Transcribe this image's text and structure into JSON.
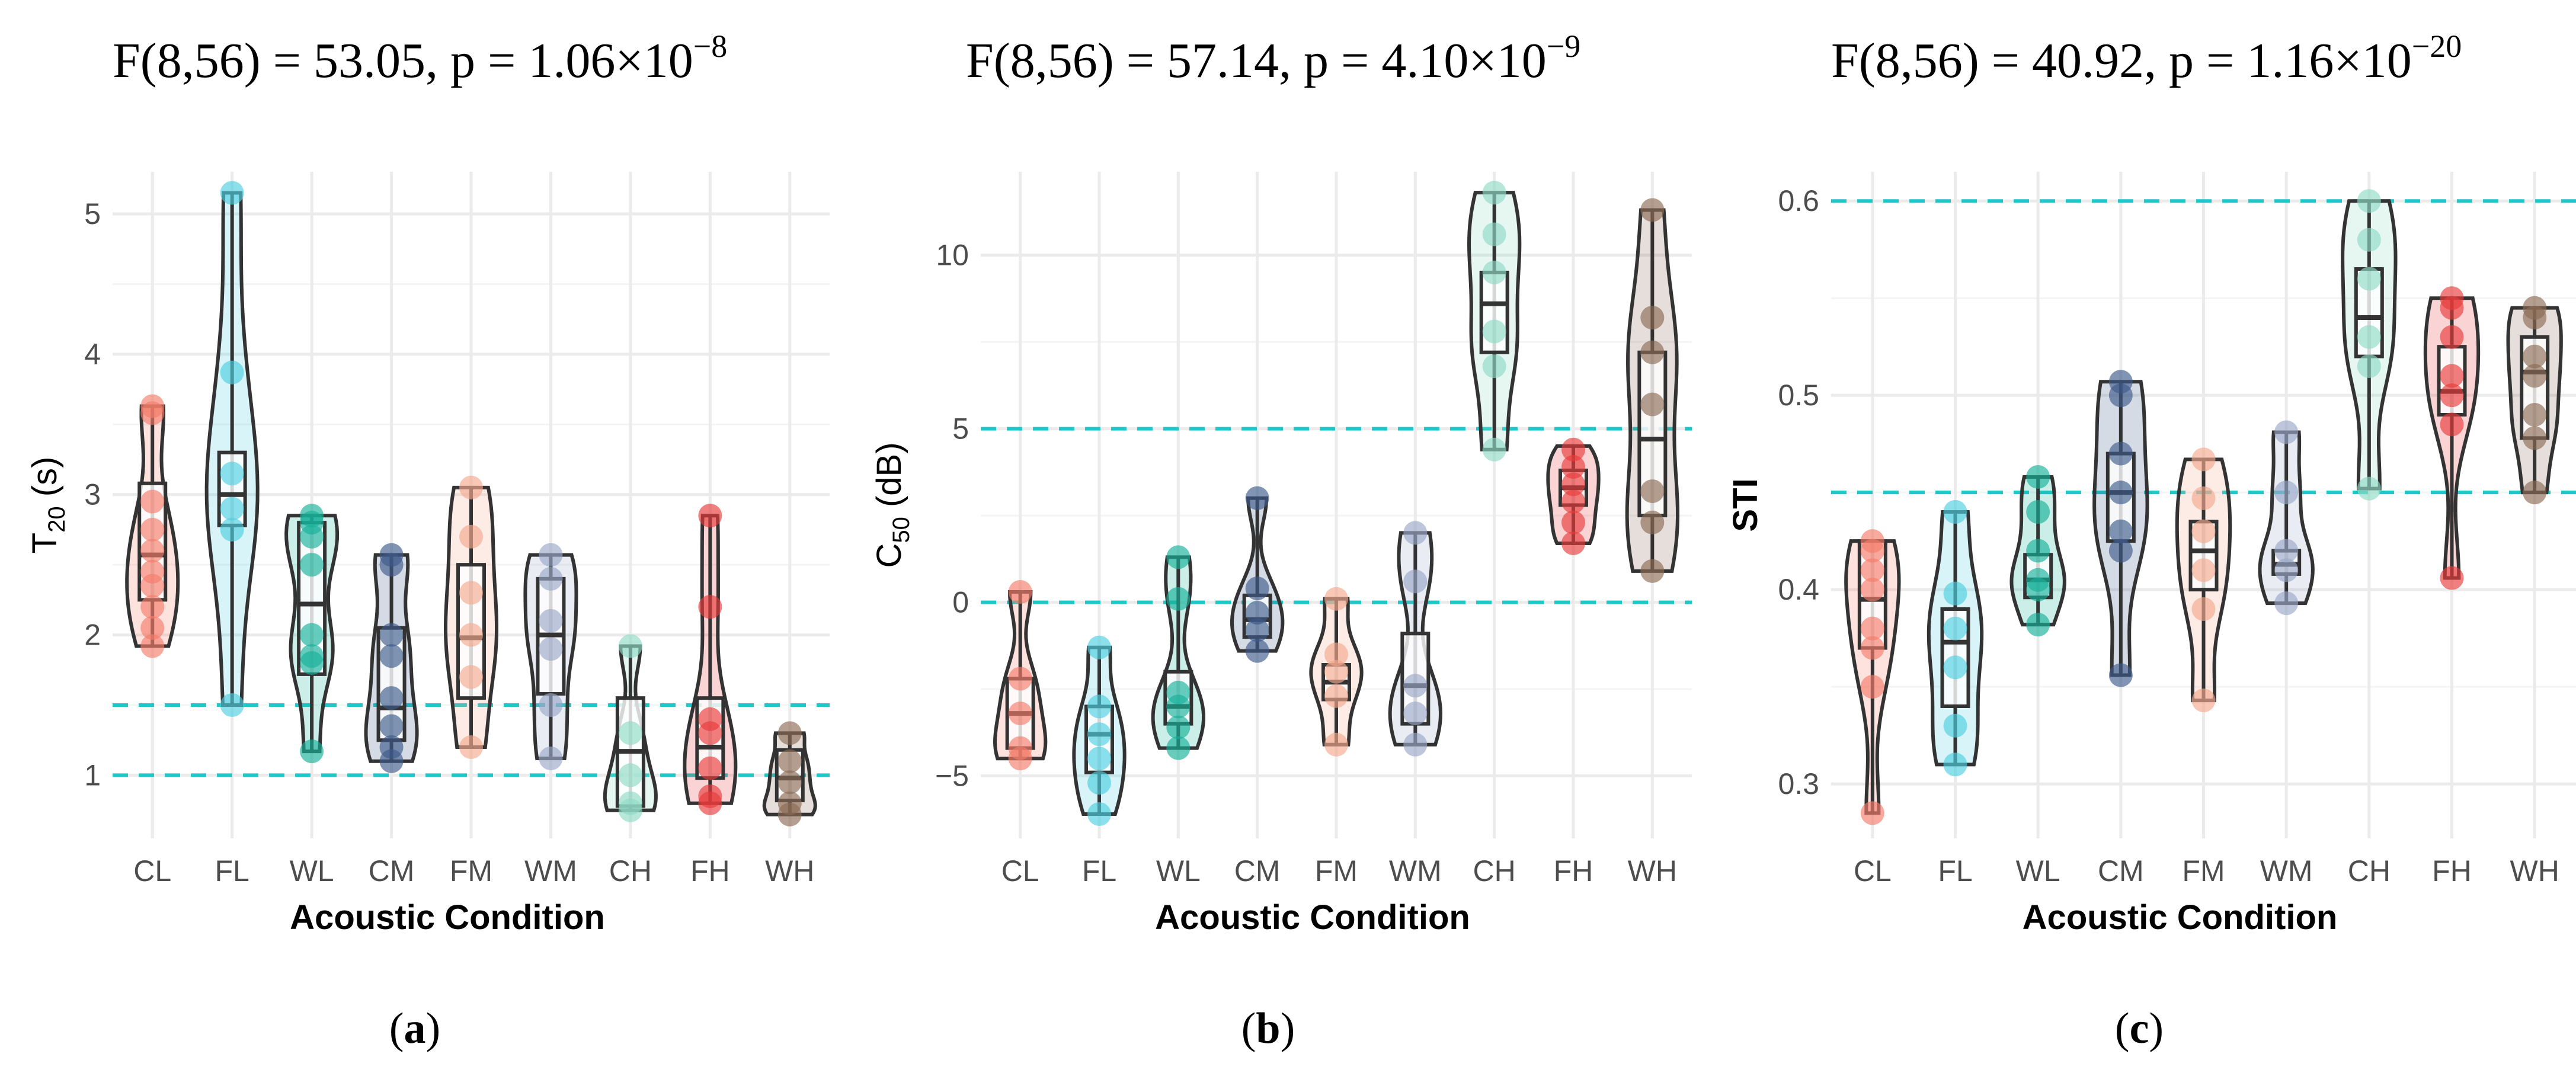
{
  "chart_data": [
    {
      "type": "violin",
      "panel_label": "a",
      "title": {
        "prefix": "F(8,56) = 53.05, p = 1.06×10",
        "exponent": "−8"
      },
      "xlabel": "Acoustic Condition",
      "ylabel": {
        "main": "T",
        "sub": "20",
        "tail": " (s)"
      },
      "categories": [
        "CL",
        "FL",
        "WL",
        "CM",
        "FM",
        "WM",
        "CH",
        "FH",
        "WH"
      ],
      "colors": [
        "#f47c6a",
        "#4fcfe0",
        "#17b09a",
        "#3d5a8a",
        "#f5a98f",
        "#9aa8c8",
        "#8fdac4",
        "#e83a3a",
        "#8c6b55"
      ],
      "ylim": [
        0.55,
        5.3
      ],
      "yticks": [
        1,
        2,
        3,
        4,
        5
      ],
      "ref_lines": [
        1.0,
        1.5
      ],
      "series": [
        {
          "name": "CL",
          "min": 1.92,
          "q1": 2.25,
          "median": 2.57,
          "q3": 3.08,
          "max": 3.63,
          "points": [
            1.92,
            2.05,
            2.2,
            2.35,
            2.45,
            2.6,
            2.75,
            2.95,
            3.58,
            3.63
          ]
        },
        {
          "name": "FL",
          "min": 1.5,
          "q1": 2.78,
          "median": 3.0,
          "q3": 3.3,
          "max": 5.15,
          "points": [
            1.5,
            2.75,
            2.9,
            3.15,
            3.87,
            5.15
          ]
        },
        {
          "name": "WL",
          "min": 1.17,
          "q1": 1.72,
          "median": 2.22,
          "q3": 2.8,
          "max": 2.85,
          "points": [
            1.17,
            1.8,
            1.85,
            2.0,
            2.5,
            2.7,
            2.8,
            2.85
          ]
        },
        {
          "name": "CM",
          "min": 1.1,
          "q1": 1.25,
          "median": 1.48,
          "q3": 2.05,
          "max": 2.57,
          "points": [
            1.1,
            1.2,
            1.35,
            1.55,
            1.85,
            2.0,
            2.5,
            2.57
          ]
        },
        {
          "name": "FM",
          "min": 1.2,
          "q1": 1.55,
          "median": 1.98,
          "q3": 2.5,
          "max": 3.05,
          "points": [
            1.2,
            1.7,
            2.0,
            2.3,
            2.7,
            3.05
          ]
        },
        {
          "name": "WM",
          "min": 1.12,
          "q1": 1.58,
          "median": 2.0,
          "q3": 2.4,
          "max": 2.57,
          "points": [
            1.12,
            1.5,
            1.9,
            2.1,
            2.4,
            2.57
          ]
        },
        {
          "name": "CH",
          "min": 0.75,
          "q1": 0.78,
          "median": 1.17,
          "q3": 1.55,
          "max": 1.92,
          "points": [
            0.75,
            0.8,
            1.0,
            1.3,
            1.92
          ]
        },
        {
          "name": "FH",
          "min": 0.8,
          "q1": 0.98,
          "median": 1.2,
          "q3": 1.55,
          "max": 2.85,
          "points": [
            0.8,
            0.85,
            1.05,
            1.3,
            1.4,
            2.2,
            2.85
          ]
        },
        {
          "name": "WH",
          "min": 0.72,
          "q1": 0.82,
          "median": 0.98,
          "q3": 1.18,
          "max": 1.3,
          "points": [
            0.72,
            0.8,
            0.95,
            1.1,
            1.3
          ]
        }
      ]
    },
    {
      "type": "violin",
      "panel_label": "b",
      "title": {
        "prefix": "F(8,56) = 57.14, p = 4.10×10",
        "exponent": "−9"
      },
      "xlabel": "Acoustic Condition",
      "ylabel": {
        "main": "C",
        "sub": "50",
        "tail": " (dB)"
      },
      "categories": [
        "CL",
        "FL",
        "WL",
        "CM",
        "FM",
        "WM",
        "CH",
        "FH",
        "WH"
      ],
      "colors": [
        "#f47c6a",
        "#4fcfe0",
        "#17b09a",
        "#3d5a8a",
        "#f5a98f",
        "#9aa8c8",
        "#8fdac4",
        "#e83a3a",
        "#8c6b55"
      ],
      "ylim": [
        -6.8,
        12.4
      ],
      "yticks": [
        -5,
        0,
        5,
        10
      ],
      "ref_lines": [
        0,
        5
      ],
      "series": [
        {
          "name": "CL",
          "min": -4.5,
          "q1": -4.2,
          "median": -3.2,
          "q3": -2.2,
          "max": 0.3,
          "points": [
            -4.5,
            -4.2,
            -3.2,
            -2.2,
            0.3
          ]
        },
        {
          "name": "FL",
          "min": -6.1,
          "q1": -4.9,
          "median": -3.8,
          "q3": -3.0,
          "max": -1.3,
          "points": [
            -6.1,
            -5.2,
            -4.5,
            -3.8,
            -3.0,
            -1.3
          ]
        },
        {
          "name": "WL",
          "min": -4.2,
          "q1": -3.5,
          "median": -3.0,
          "q3": -2.0,
          "max": 1.3,
          "points": [
            -4.2,
            -3.6,
            -3.0,
            -2.6,
            0.1,
            1.3
          ]
        },
        {
          "name": "CM",
          "min": -1.4,
          "q1": -1.0,
          "median": -0.5,
          "q3": 0.2,
          "max": 3.0,
          "points": [
            -1.4,
            -0.8,
            -0.3,
            0.4,
            3.0
          ]
        },
        {
          "name": "FM",
          "min": -4.1,
          "q1": -2.8,
          "median": -2.3,
          "q3": -1.8,
          "max": 0.1,
          "points": [
            -4.1,
            -2.7,
            -2.0,
            -1.5,
            0.1
          ]
        },
        {
          "name": "WM",
          "min": -4.1,
          "q1": -3.5,
          "median": -2.4,
          "q3": -0.9,
          "max": 2.0,
          "points": [
            -4.1,
            -3.2,
            -2.4,
            0.6,
            2.0
          ]
        },
        {
          "name": "CH",
          "min": 4.4,
          "q1": 7.2,
          "median": 8.6,
          "q3": 9.5,
          "max": 11.8,
          "points": [
            4.4,
            6.8,
            7.8,
            9.5,
            10.6,
            11.8
          ]
        },
        {
          "name": "FH",
          "min": 1.7,
          "q1": 2.8,
          "median": 3.3,
          "q3": 3.8,
          "max": 4.5,
          "points": [
            1.7,
            2.3,
            2.9,
            3.4,
            3.9,
            4.4
          ]
        },
        {
          "name": "WH",
          "min": 0.9,
          "q1": 2.5,
          "median": 4.7,
          "q3": 7.2,
          "max": 11.3,
          "points": [
            0.9,
            2.3,
            3.2,
            5.7,
            7.2,
            8.2,
            11.3
          ]
        }
      ]
    },
    {
      "type": "violin",
      "panel_label": "c",
      "title": {
        "prefix": "F(8,56) = 40.92, p = 1.16×10",
        "exponent": "−20"
      },
      "xlabel": "Acoustic Condition",
      "ylabel": {
        "main": "STI",
        "sub": "",
        "tail": ""
      },
      "ylabel_bold": true,
      "categories": [
        "CL",
        "FL",
        "WL",
        "CM",
        "FM",
        "WM",
        "CH",
        "FH",
        "WH"
      ],
      "colors": [
        "#f47c6a",
        "#4fcfe0",
        "#17b09a",
        "#3d5a8a",
        "#f5a98f",
        "#9aa8c8",
        "#8fdac4",
        "#e83a3a",
        "#8c6b55"
      ],
      "ylim": [
        0.272,
        0.615
      ],
      "yticks": [
        0.3,
        0.4,
        0.5,
        0.6
      ],
      "tick_labels": [
        "0.3",
        "0.4",
        "0.5",
        "0.6"
      ],
      "ref_lines": [
        0.45,
        0.6
      ],
      "series": [
        {
          "name": "CL",
          "min": 0.285,
          "q1": 0.37,
          "median": 0.395,
          "q3": 0.425,
          "max": 0.425,
          "points": [
            0.285,
            0.35,
            0.37,
            0.38,
            0.4,
            0.41,
            0.42,
            0.425
          ]
        },
        {
          "name": "FL",
          "min": 0.31,
          "q1": 0.34,
          "median": 0.373,
          "q3": 0.39,
          "max": 0.44,
          "points": [
            0.31,
            0.33,
            0.36,
            0.38,
            0.398,
            0.44
          ]
        },
        {
          "name": "WL",
          "min": 0.382,
          "q1": 0.396,
          "median": 0.405,
          "q3": 0.418,
          "max": 0.458,
          "points": [
            0.382,
            0.4,
            0.405,
            0.42,
            0.44,
            0.458
          ]
        },
        {
          "name": "CM",
          "min": 0.356,
          "q1": 0.425,
          "median": 0.45,
          "q3": 0.47,
          "max": 0.507,
          "points": [
            0.356,
            0.42,
            0.43,
            0.45,
            0.47,
            0.5,
            0.507
          ]
        },
        {
          "name": "FM",
          "min": 0.343,
          "q1": 0.4,
          "median": 0.42,
          "q3": 0.435,
          "max": 0.467,
          "points": [
            0.343,
            0.39,
            0.41,
            0.43,
            0.447,
            0.467
          ]
        },
        {
          "name": "WM",
          "min": 0.393,
          "q1": 0.408,
          "median": 0.413,
          "q3": 0.42,
          "max": 0.481,
          "points": [
            0.393,
            0.41,
            0.42,
            0.45,
            0.481
          ]
        },
        {
          "name": "CH",
          "min": 0.452,
          "q1": 0.52,
          "median": 0.54,
          "q3": 0.565,
          "max": 0.6,
          "points": [
            0.452,
            0.515,
            0.53,
            0.56,
            0.58,
            0.6
          ]
        },
        {
          "name": "FH",
          "min": 0.406,
          "q1": 0.49,
          "median": 0.502,
          "q3": 0.525,
          "max": 0.55,
          "points": [
            0.406,
            0.485,
            0.5,
            0.51,
            0.53,
            0.545,
            0.55
          ]
        },
        {
          "name": "WH",
          "min": 0.45,
          "q1": 0.478,
          "median": 0.512,
          "q3": 0.53,
          "max": 0.545,
          "points": [
            0.45,
            0.478,
            0.49,
            0.51,
            0.52,
            0.54,
            0.545
          ]
        }
      ]
    }
  ]
}
